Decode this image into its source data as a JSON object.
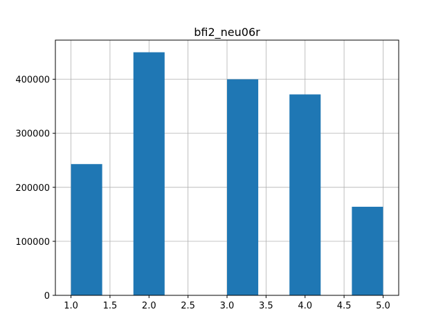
{
  "chart_data": {
    "type": "bar",
    "title": "bfi2_neu06r",
    "xlabel": "",
    "ylabel": "",
    "bins": [
      {
        "start": 1.0,
        "end": 1.4,
        "count": 243000
      },
      {
        "start": 1.4,
        "end": 1.8,
        "count": 0
      },
      {
        "start": 1.8,
        "end": 2.2,
        "count": 450000
      },
      {
        "start": 2.2,
        "end": 2.6,
        "count": 0
      },
      {
        "start": 2.6,
        "end": 3.0,
        "count": 0
      },
      {
        "start": 3.0,
        "end": 3.4,
        "count": 400000
      },
      {
        "start": 3.4,
        "end": 3.8,
        "count": 0
      },
      {
        "start": 3.8,
        "end": 4.2,
        "count": 372000
      },
      {
        "start": 4.2,
        "end": 4.6,
        "count": 0
      },
      {
        "start": 4.6,
        "end": 5.0,
        "count": 164000
      }
    ],
    "xlim": [
      0.8,
      5.2
    ],
    "ylim": [
      0,
      472500
    ],
    "x_ticks": [
      {
        "value": 1.0,
        "label": "1.0"
      },
      {
        "value": 1.5,
        "label": "1.5"
      },
      {
        "value": 2.0,
        "label": "2.0"
      },
      {
        "value": 2.5,
        "label": "2.5"
      },
      {
        "value": 3.0,
        "label": "3.0"
      },
      {
        "value": 3.5,
        "label": "3.5"
      },
      {
        "value": 4.0,
        "label": "4.0"
      },
      {
        "value": 4.5,
        "label": "4.5"
      },
      {
        "value": 5.0,
        "label": "5.0"
      }
    ],
    "y_ticks": [
      {
        "value": 0,
        "label": "0"
      },
      {
        "value": 100000,
        "label": "100000"
      },
      {
        "value": 200000,
        "label": "200000"
      },
      {
        "value": 300000,
        "label": "300000"
      },
      {
        "value": 400000,
        "label": "400000"
      }
    ],
    "grid": true,
    "bar_color": "#1f77b4",
    "grid_color": "#b0b0b0"
  }
}
